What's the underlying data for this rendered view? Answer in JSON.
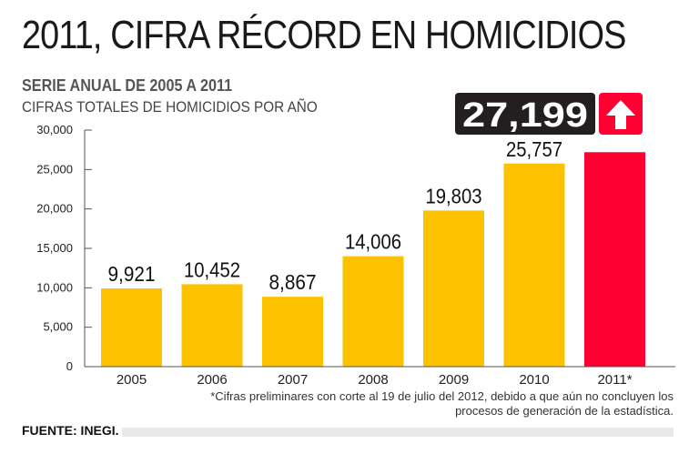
{
  "header": {
    "title": "2011, CIFRA RÉCORD EN HOMICIDIOS",
    "subtitle": "SERIE ANUAL DE 2005 A 2011",
    "subtitle2": "CIFRAS TOTALES DE HOMICIDIOS POR AÑO"
  },
  "footnote": "*Cifras preliminares con corte al 19 de julio del 2012, debido a que aún no concluyen los procesos de generación de la estadística.",
  "source": "FUENTE: INEGI.",
  "highlight": {
    "value_label": "27,199",
    "icon": "arrow-up-icon",
    "color": "#ff0033"
  },
  "colors": {
    "bar": "#fcc200",
    "bar_highlight": "#ff0033",
    "axis": "#555555",
    "badge_bg": "#231f20"
  },
  "chart_data": {
    "type": "bar",
    "categories": [
      "2005",
      "2006",
      "2007",
      "2008",
      "2009",
      "2010",
      "2011*"
    ],
    "values": [
      9921,
      10452,
      8867,
      14006,
      19803,
      25757,
      27199
    ],
    "value_labels": [
      "9,921",
      "10,452",
      "8,867",
      "14,006",
      "19,803",
      "25,757",
      ""
    ],
    "highlight_index": 6,
    "ylim": [
      0,
      30000
    ],
    "yticks": [
      0,
      5000,
      10000,
      15000,
      20000,
      25000,
      30000
    ],
    "ytick_labels": [
      "0",
      "5,000",
      "10,000",
      "15,000",
      "20,000",
      "25,000",
      "30,000"
    ],
    "grid": false,
    "legend": "none",
    "xlabel": "",
    "ylabel": ""
  }
}
